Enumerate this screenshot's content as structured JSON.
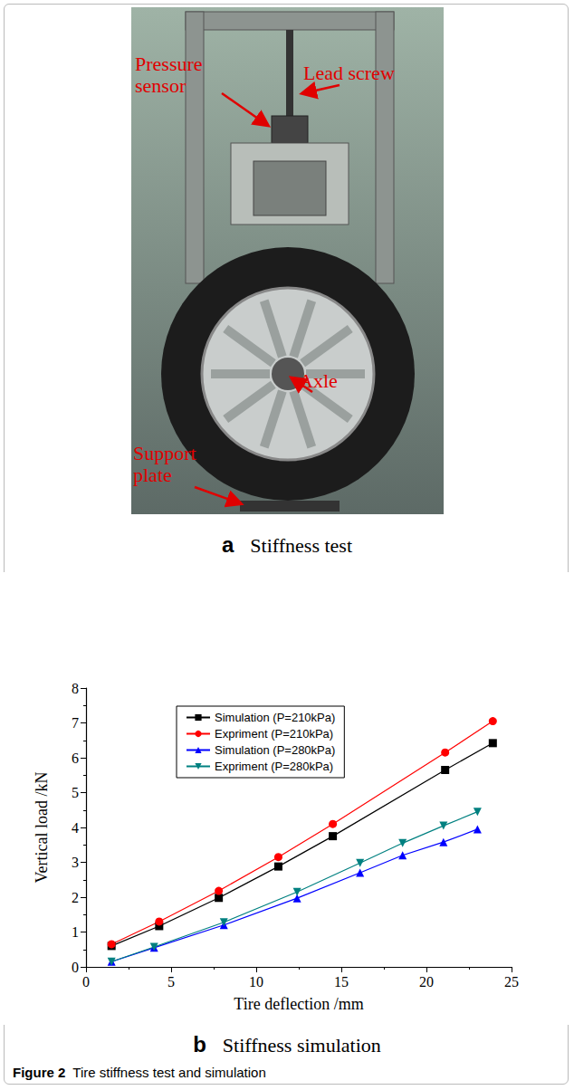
{
  "panels": [
    {
      "letter": "a",
      "caption": "Stiffness test",
      "annotations": [
        "Pressure sensor",
        "Lead screw",
        "Axle",
        "Support plate"
      ]
    },
    {
      "letter": "b",
      "caption": "Stiffness simulation"
    }
  ],
  "figure": {
    "label": "Figure 2",
    "text": "Tire stiffness test and simulation"
  },
  "chart_data": {
    "type": "line",
    "x_label": "Tire deflection /mm",
    "y_label": "Vertical load /kN",
    "xlim": [
      0,
      25
    ],
    "xticks": [
      0,
      5,
      10,
      15,
      20,
      25
    ],
    "ylim": [
      0,
      8
    ],
    "yticks": [
      0,
      1,
      2,
      3,
      4,
      5,
      6,
      7,
      8
    ],
    "legend": "upper left",
    "grid": false,
    "series": [
      {
        "name": "Simulation (P=210kPa)",
        "color": "#000000",
        "marker": "square",
        "x": [
          1.5,
          4.3,
          7.8,
          11.3,
          14.5,
          21.1,
          23.9
        ],
        "values": [
          0.6,
          1.17,
          1.98,
          2.88,
          3.75,
          5.65,
          6.42
        ]
      },
      {
        "name": "Expriment (P=210kPa)",
        "color": "#ff0000",
        "marker": "circle",
        "x": [
          1.5,
          4.3,
          7.8,
          11.3,
          14.5,
          21.1,
          23.9
        ],
        "values": [
          0.65,
          1.3,
          2.18,
          3.15,
          4.1,
          6.15,
          7.05
        ]
      },
      {
        "name": "Simulation (P=280kPa)",
        "color": "#0000ff",
        "marker": "triangle",
        "x": [
          1.5,
          4.0,
          8.1,
          12.4,
          16.1,
          18.6,
          21.0,
          23.0
        ],
        "values": [
          0.15,
          0.55,
          1.2,
          1.97,
          2.7,
          3.2,
          3.58,
          3.95
        ]
      },
      {
        "name": "Expriment (P=280kPa)",
        "color": "#008080",
        "marker": "triangle_down",
        "x": [
          1.5,
          4.0,
          8.1,
          12.4,
          16.1,
          18.6,
          21.0,
          23.0
        ],
        "values": [
          0.15,
          0.57,
          1.28,
          2.15,
          2.98,
          3.55,
          4.05,
          4.45
        ]
      }
    ]
  }
}
